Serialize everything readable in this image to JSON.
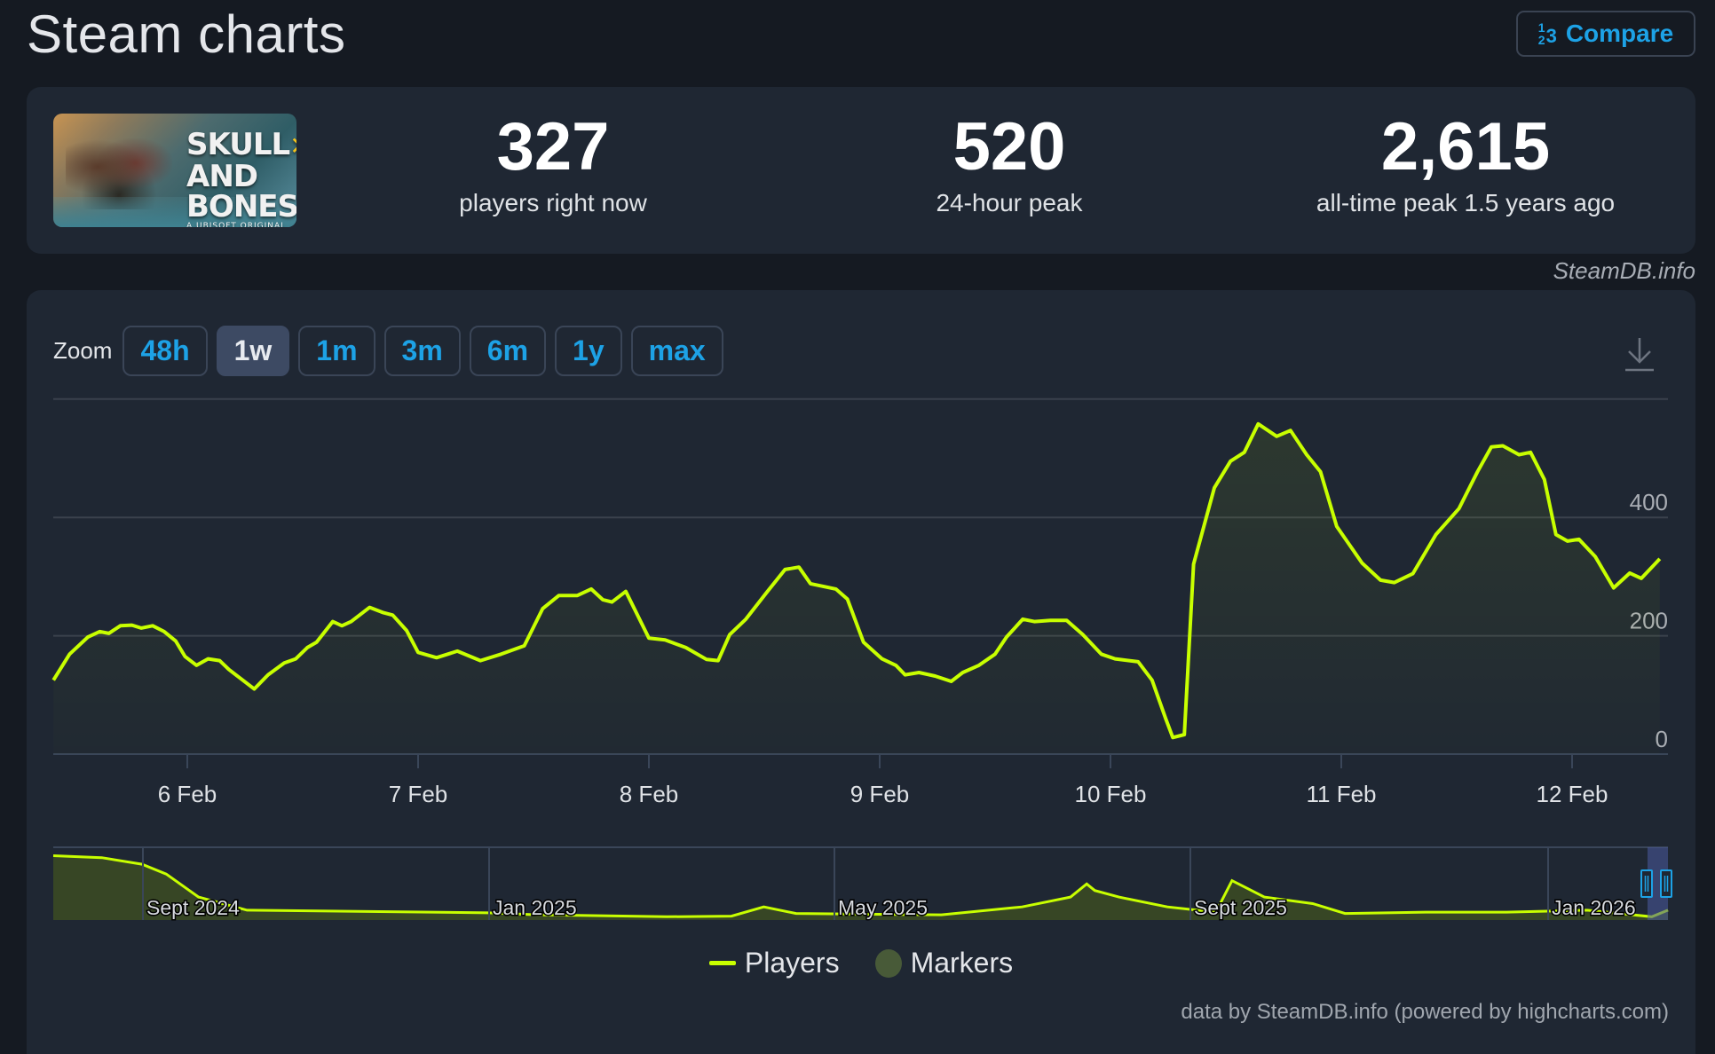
{
  "header": {
    "title": "Steam charts",
    "compare_label": "Compare",
    "compare_icon": "numbers-icon"
  },
  "stats": {
    "game": "Skull and Bones",
    "image_logo_line1": "SKULL",
    "image_logo_line2": "AND BONES",
    "image_logo_sub": "A UBISOFT ORIGINAL",
    "current": {
      "value": "327",
      "label": "players right now"
    },
    "peak_24h": {
      "value": "520",
      "label": "24-hour peak"
    },
    "all_time": {
      "value": "2,615",
      "label": "all-time peak 1.5 years ago"
    }
  },
  "credit_top": "SteamDB.info",
  "zoom": {
    "label": "Zoom",
    "options": [
      "48h",
      "1w",
      "1m",
      "3m",
      "6m",
      "1y",
      "max"
    ],
    "selected": "1w"
  },
  "legend": {
    "players": "Players",
    "markers": "Markers"
  },
  "credit_bottom": "data by SteamDB.info (powered by highcharts.com)",
  "colors": {
    "line": "#c8ff00",
    "marker": "#485a38",
    "accent": "#1da2e6",
    "card": "#1f2733",
    "bg": "#151a22"
  },
  "chart_data": {
    "type": "line",
    "title": "",
    "xlabel": "",
    "ylabel": "Players",
    "ylim": [
      0,
      600
    ],
    "yticks": [
      0,
      200,
      400
    ],
    "grid": true,
    "legend_position": "bottom",
    "x_tick_labels": [
      "6 Feb",
      "7 Feb",
      "8 Feb",
      "9 Feb",
      "10 Feb",
      "11 Feb",
      "12 Feb"
    ],
    "x_range_days": [
      -0.58,
      6.42
    ],
    "series": [
      {
        "name": "Players",
        "points_day_value": [
          [
            -0.58,
            125
          ],
          [
            -0.51,
            169
          ],
          [
            -0.43,
            198
          ],
          [
            -0.38,
            207
          ],
          [
            -0.34,
            204
          ],
          [
            -0.29,
            217
          ],
          [
            -0.24,
            218
          ],
          [
            -0.2,
            213
          ],
          [
            -0.15,
            217
          ],
          [
            -0.1,
            207
          ],
          [
            -0.05,
            191
          ],
          [
            -0.01,
            165
          ],
          [
            0.04,
            150
          ],
          [
            0.09,
            161
          ],
          [
            0.14,
            158
          ],
          [
            0.18,
            143
          ],
          [
            0.23,
            128
          ],
          [
            0.29,
            110
          ],
          [
            0.35,
            134
          ],
          [
            0.42,
            154
          ],
          [
            0.47,
            161
          ],
          [
            0.52,
            180
          ],
          [
            0.56,
            189
          ],
          [
            0.63,
            224
          ],
          [
            0.67,
            217
          ],
          [
            0.71,
            224
          ],
          [
            0.79,
            248
          ],
          [
            0.85,
            239
          ],
          [
            0.89,
            235
          ],
          [
            0.95,
            209
          ],
          [
            1.0,
            172
          ],
          [
            1.08,
            163
          ],
          [
            1.17,
            174
          ],
          [
            1.27,
            158
          ],
          [
            1.36,
            169
          ],
          [
            1.46,
            183
          ],
          [
            1.54,
            246
          ],
          [
            1.61,
            268
          ],
          [
            1.69,
            268
          ],
          [
            1.75,
            279
          ],
          [
            1.8,
            261
          ],
          [
            1.84,
            257
          ],
          [
            1.9,
            275
          ],
          [
            2.0,
            196
          ],
          [
            2.07,
            193
          ],
          [
            2.16,
            180
          ],
          [
            2.25,
            160
          ],
          [
            2.3,
            158
          ],
          [
            2.35,
            202
          ],
          [
            2.42,
            228
          ],
          [
            2.51,
            273
          ],
          [
            2.59,
            312
          ],
          [
            2.65,
            316
          ],
          [
            2.7,
            288
          ],
          [
            2.76,
            283
          ],
          [
            2.81,
            279
          ],
          [
            2.86,
            262
          ],
          [
            2.93,
            189
          ],
          [
            3.01,
            161
          ],
          [
            3.07,
            150
          ],
          [
            3.11,
            134
          ],
          [
            3.17,
            138
          ],
          [
            3.24,
            132
          ],
          [
            3.31,
            123
          ],
          [
            3.36,
            138
          ],
          [
            3.43,
            150
          ],
          [
            3.5,
            169
          ],
          [
            3.55,
            198
          ],
          [
            3.62,
            228
          ],
          [
            3.67,
            224
          ],
          [
            3.74,
            226
          ],
          [
            3.81,
            226
          ],
          [
            3.88,
            202
          ],
          [
            3.96,
            169
          ],
          [
            4.02,
            161
          ],
          [
            4.12,
            156
          ],
          [
            4.18,
            125
          ],
          [
            4.24,
            59
          ],
          [
            4.27,
            28
          ],
          [
            4.32,
            33
          ],
          [
            4.36,
            321
          ],
          [
            4.45,
            450
          ],
          [
            4.52,
            495
          ],
          [
            4.58,
            510
          ],
          [
            4.64,
            558
          ],
          [
            4.72,
            537
          ],
          [
            4.78,
            547
          ],
          [
            4.85,
            506
          ],
          [
            4.91,
            477
          ],
          [
            4.98,
            385
          ],
          [
            5.09,
            323
          ],
          [
            5.17,
            294
          ],
          [
            5.23,
            290
          ],
          [
            5.31,
            305
          ],
          [
            5.41,
            371
          ],
          [
            5.51,
            415
          ],
          [
            5.59,
            477
          ],
          [
            5.65,
            519
          ],
          [
            5.7,
            521
          ],
          [
            5.77,
            506
          ],
          [
            5.82,
            510
          ],
          [
            5.88,
            464
          ],
          [
            5.93,
            371
          ],
          [
            5.98,
            360
          ],
          [
            6.03,
            363
          ],
          [
            6.1,
            334
          ],
          [
            6.18,
            281
          ],
          [
            6.25,
            306
          ],
          [
            6.3,
            297
          ],
          [
            6.38,
            330
          ]
        ]
      }
    ],
    "navigator": {
      "labels": [
        "Sept 2024",
        "Jan 2025",
        "May 2025",
        "Sept 2025",
        "Jan 2026"
      ],
      "relative_profile": [
        [
          0,
          0.98
        ],
        [
          0.03,
          0.95
        ],
        [
          0.055,
          0.85
        ],
        [
          0.07,
          0.7
        ],
        [
          0.09,
          0.35
        ],
        [
          0.12,
          0.15
        ],
        [
          0.27,
          0.11
        ],
        [
          0.3,
          0.08
        ],
        [
          0.38,
          0.05
        ],
        [
          0.42,
          0.06
        ],
        [
          0.44,
          0.2
        ],
        [
          0.46,
          0.1
        ],
        [
          0.55,
          0.08
        ],
        [
          0.6,
          0.2
        ],
        [
          0.63,
          0.35
        ],
        [
          0.64,
          0.55
        ],
        [
          0.645,
          0.45
        ],
        [
          0.66,
          0.35
        ],
        [
          0.69,
          0.2
        ],
        [
          0.72,
          0.12
        ],
        [
          0.73,
          0.6
        ],
        [
          0.75,
          0.35
        ],
        [
          0.78,
          0.25
        ],
        [
          0.8,
          0.1
        ],
        [
          0.85,
          0.12
        ],
        [
          0.9,
          0.12
        ],
        [
          0.95,
          0.15
        ],
        [
          0.99,
          0.05
        ],
        [
          1.0,
          0.15
        ]
      ]
    }
  }
}
